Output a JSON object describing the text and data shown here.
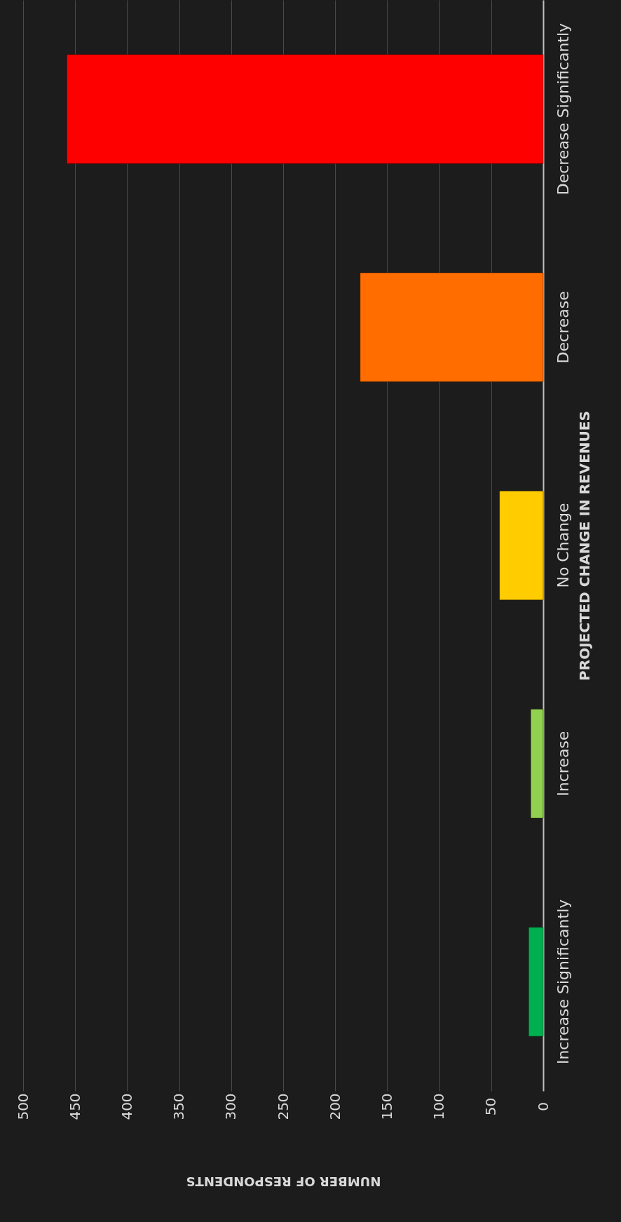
{
  "chart_data": {
    "type": "bar",
    "orientation": "horizontal",
    "xlabel": "NUMBER OF RESPONDENTS",
    "ylabel": "PROJECTED CHANGE IN REVENUES",
    "categories": [
      "Decrease Significantly",
      "Decrease",
      "No Change",
      "Increase",
      "Increase Significantly"
    ],
    "values": [
      458,
      176,
      42,
      12,
      14
    ],
    "colors": [
      "#ff0000",
      "#ff6d00",
      "#ffcc00",
      "#92d050",
      "#00b050"
    ],
    "xlim": [
      500,
      0
    ],
    "xticks": [
      0,
      50,
      100,
      150,
      200,
      250,
      300,
      350,
      400,
      450,
      500
    ],
    "grid": "x"
  }
}
